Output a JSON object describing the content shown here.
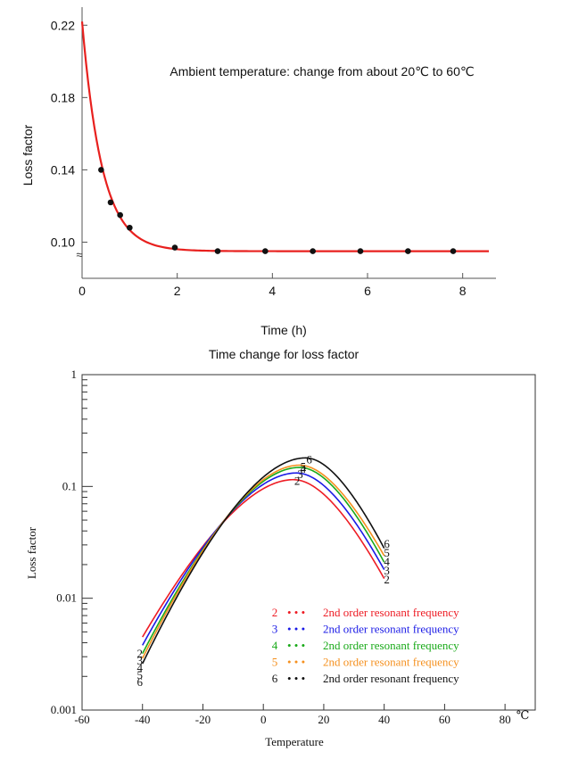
{
  "chart_data": [
    {
      "type": "line",
      "annotation": "Ambient temperature: change from about 20℃ to 60℃",
      "xlabel": "Time (h)",
      "ylabel": "Loss factor",
      "caption": "Time change for loss factor",
      "xlim": [
        0,
        8.7
      ],
      "ylim": [
        0.08,
        0.23
      ],
      "x_ticks": [
        "0",
        "2",
        "4",
        "6",
        "8"
      ],
      "y_ticks": [
        "0.10",
        "0.14",
        "0.18",
        "0.22"
      ],
      "axis_break_symbol": "≈",
      "curve_color": "#e8201e",
      "marker_color": "#111111",
      "series": [
        {
          "x": [
            0.4,
            0.6,
            0.8,
            1.0,
            1.95,
            2.85,
            3.85,
            4.85,
            5.85,
            6.85,
            7.8
          ],
          "y": [
            0.14,
            0.122,
            0.115,
            0.108,
            0.097,
            0.095,
            0.095,
            0.095,
            0.095,
            0.095,
            0.095
          ]
        }
      ]
    },
    {
      "type": "line",
      "xlabel": "Temperature",
      "ylabel": "Loss factor",
      "x_unit": "℃",
      "xlim": [
        -60,
        90
      ],
      "ylim": [
        0.001,
        1
      ],
      "yscale": "log",
      "x_ticks": [
        "-60",
        "-40",
        "-20",
        "0",
        "20",
        "40",
        "60",
        "80"
      ],
      "y_ticks": [
        "0.001",
        "0.01",
        "0.1",
        "1"
      ],
      "legend_dots": "• • •",
      "legend_placement": "bottom-right",
      "series": [
        {
          "name": "2nd order resonant frequency",
          "order": "2",
          "color": "#ee1c24",
          "x": [
            -40,
            10,
            40
          ],
          "y": [
            0.0045,
            0.115,
            0.015
          ]
        },
        {
          "name": "2nd order resonant frequency",
          "order": "3",
          "color": "#1a1ae6",
          "x": [
            -40,
            11,
            40
          ],
          "y": [
            0.0038,
            0.132,
            0.018
          ]
        },
        {
          "name": "2nd order resonant frequency",
          "order": "4",
          "color": "#1aaa1a",
          "x": [
            -40,
            12,
            40
          ],
          "y": [
            0.0032,
            0.148,
            0.021
          ]
        },
        {
          "name": "2nd order resonant frequency",
          "order": "5",
          "color": "#f5901e",
          "x": [
            -40,
            12,
            40
          ],
          "y": [
            0.0029,
            0.155,
            0.024
          ]
        },
        {
          "name": "2nd order resonant frequency",
          "order": "6",
          "color": "#111111",
          "x": [
            -40,
            14,
            40
          ],
          "y": [
            0.0026,
            0.18,
            0.028
          ]
        }
      ]
    }
  ]
}
